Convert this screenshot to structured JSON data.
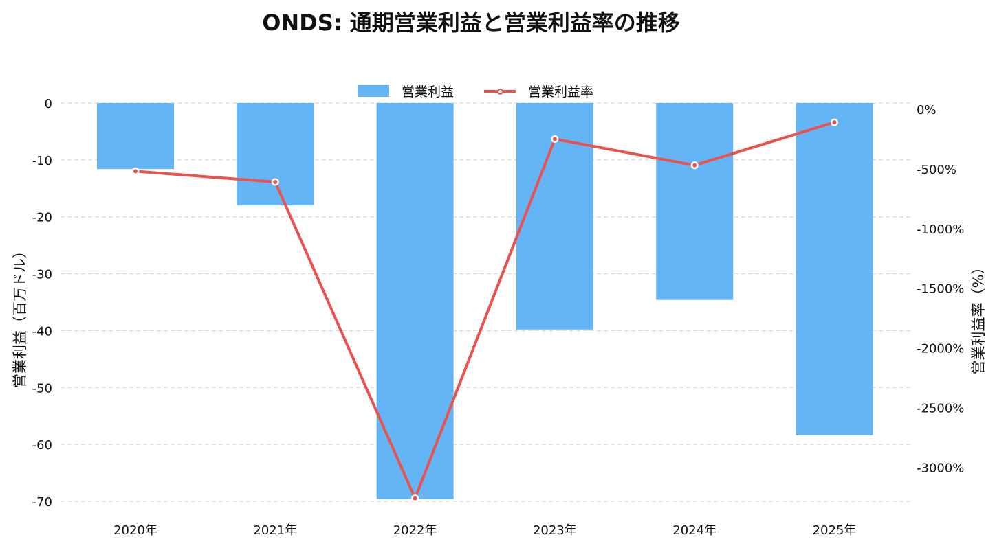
{
  "chart_data": {
    "type": "bar",
    "title": "ONDS: 通期営業利益と営業利益率の推移",
    "categories": [
      "2020年",
      "2021年",
      "2022年",
      "2023年",
      "2024年",
      "2025年"
    ],
    "series": [
      {
        "name": "営業利益",
        "type": "bar",
        "axis": "left",
        "color": "#64b5f6",
        "values": [
          -11.6,
          -18.0,
          -69.6,
          -39.8,
          -34.6,
          -58.4
        ]
      },
      {
        "name": "営業利益率",
        "type": "line",
        "axis": "right",
        "color": "#e8534f",
        "values": [
          -520,
          -610,
          -3260,
          -250,
          -470,
          -110
        ]
      }
    ],
    "ylabel": "営業利益（百万ドル）",
    "ylabel_right": "営業利益率（%）",
    "ylim": [
      -70,
      0
    ],
    "yticks": [
      "0",
      "-10",
      "-20",
      "-30",
      "-40",
      "-50",
      "-60",
      "-70"
    ],
    "yticks_right": [
      "0%",
      "-500%",
      "-1000%",
      "-1500%",
      "-2000%",
      "-2500%",
      "-3000%"
    ],
    "ylim_right": [
      -3265,
      0
    ],
    "grid": true,
    "legend_position": "top-center"
  }
}
